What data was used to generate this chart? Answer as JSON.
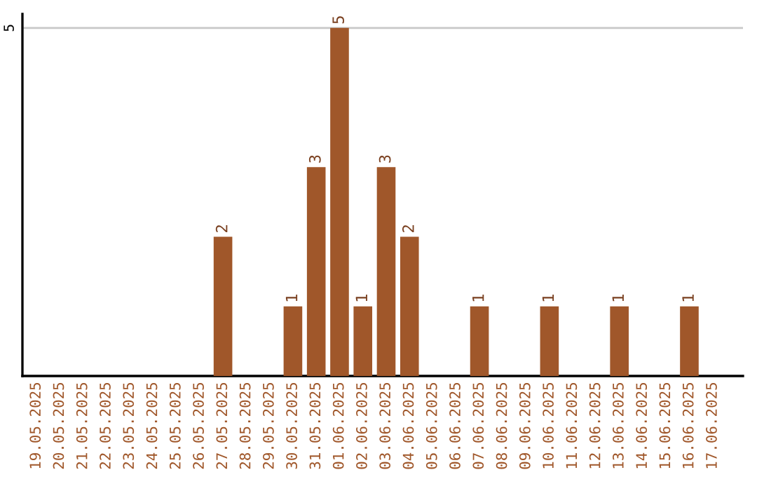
{
  "chart_data": {
    "type": "bar",
    "categories": [
      "19.05.2025",
      "20.05.2025",
      "21.05.2025",
      "22.05.2025",
      "23.05.2025",
      "24.05.2025",
      "25.05.2025",
      "26.05.2025",
      "27.05.2025",
      "28.05.2025",
      "29.05.2025",
      "30.05.2025",
      "31.05.2025",
      "01.06.2025",
      "02.06.2025",
      "03.06.2025",
      "04.06.2025",
      "05.06.2025",
      "06.06.2025",
      "07.06.2025",
      "08.06.2025",
      "09.06.2025",
      "10.06.2025",
      "11.06.2025",
      "12.06.2025",
      "13.06.2025",
      "14.06.2025",
      "15.06.2025",
      "16.06.2025",
      "17.06.2025"
    ],
    "values": [
      0,
      0,
      0,
      0,
      0,
      0,
      0,
      0,
      2,
      0,
      0,
      1,
      3,
      5,
      1,
      3,
      2,
      0,
      0,
      1,
      0,
      0,
      1,
      0,
      0,
      1,
      0,
      0,
      1,
      0
    ],
    "value_labels": [
      null,
      null,
      null,
      null,
      null,
      null,
      null,
      null,
      "2",
      null,
      null,
      "1",
      "3",
      "5",
      "1",
      "3",
      "2",
      null,
      null,
      "1",
      null,
      null,
      "1",
      null,
      null,
      "1",
      null,
      null,
      "1",
      null
    ],
    "color": "#a0572a",
    "ylim": [
      0,
      5.2
    ],
    "yticks": [
      5
    ],
    "grid": "y"
  }
}
